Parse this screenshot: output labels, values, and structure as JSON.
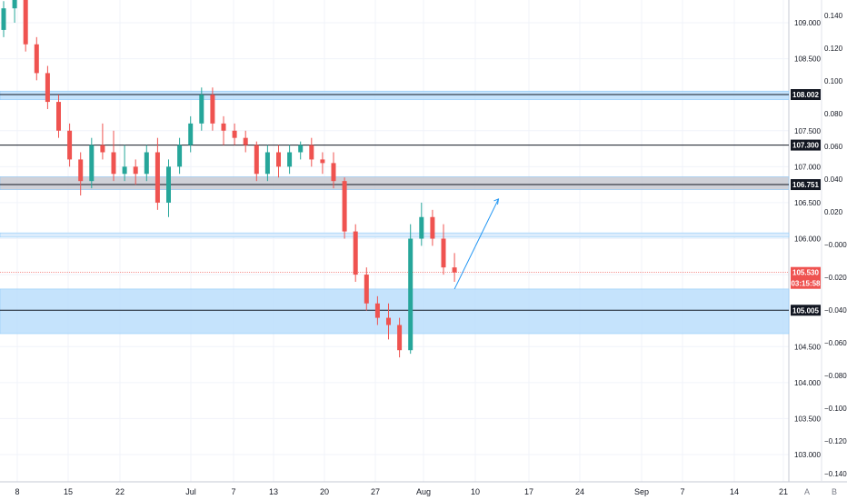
{
  "chart_data": {
    "type": "candlestick",
    "title": "",
    "xlabel": "",
    "ylabel": "",
    "ylim": [
      102.7,
      109.5
    ],
    "right_axis_ticks": [
      "109.000",
      "108.500",
      "108.000",
      "107.500",
      "107.000",
      "106.500",
      "106.000",
      "105.500",
      "105.000",
      "104.500",
      "104.000",
      "103.500",
      "103.000"
    ],
    "secondary_axis_ticks": [
      "0.140",
      "0.120",
      "0.100",
      "0.080",
      "0.060",
      "0.040",
      "0.020",
      "−0.000",
      "−0.020",
      "−0.040",
      "−0.060",
      "−0.080",
      "−0.100",
      "−0.120",
      "−0.140"
    ],
    "x_ticks": [
      "8",
      "15",
      "22",
      "Jul",
      "7",
      "13",
      "20",
      "27",
      "Aug",
      "10",
      "17",
      "24",
      "Sep",
      "7",
      "14",
      "21"
    ],
    "horizontal_levels": [
      {
        "value": 108.002,
        "label": "108.002",
        "color": "#131722"
      },
      {
        "value": 107.3,
        "label": "107.300",
        "color": "#131722"
      },
      {
        "value": 106.751,
        "label": "106.751",
        "color": "#131722"
      },
      {
        "value": 105.005,
        "label": "105.005",
        "color": "#131722"
      }
    ],
    "zones": [
      {
        "from": 107.93,
        "to": 108.05,
        "color": "#bbdefb"
      },
      {
        "from": 106.68,
        "to": 106.86,
        "color": "#c7c9d1"
      },
      {
        "from": 106.02,
        "to": 106.08,
        "color": "#d6e9fb"
      },
      {
        "from": 104.68,
        "to": 105.3,
        "color": "#bbdefb"
      }
    ],
    "last_price": {
      "value": 105.53,
      "label": "105.530",
      "countdown": "03:15:58",
      "color": "#ef5350"
    },
    "arrow": {
      "from": [
        41,
        105.3
      ],
      "to": [
        45,
        106.55
      ]
    },
    "corner_labels": [
      "A",
      "B"
    ],
    "up_color": "#26a69a",
    "down_color": "#ef5350",
    "candles": [
      [
        0,
        108.9,
        109.3,
        108.8,
        109.2
      ],
      [
        1,
        109.2,
        109.5,
        109.0,
        109.4
      ],
      [
        2,
        109.4,
        109.45,
        108.6,
        108.7
      ],
      [
        3,
        108.7,
        108.8,
        108.2,
        108.3
      ],
      [
        4,
        108.3,
        108.4,
        107.8,
        107.9
      ],
      [
        5,
        107.9,
        108.0,
        107.4,
        107.5
      ],
      [
        6,
        107.5,
        107.6,
        107.0,
        107.1
      ],
      [
        7,
        107.1,
        107.2,
        106.6,
        106.8
      ],
      [
        8,
        106.8,
        107.4,
        106.7,
        107.3
      ],
      [
        9,
        107.3,
        107.6,
        107.1,
        107.2
      ],
      [
        10,
        107.2,
        107.5,
        106.8,
        106.9
      ],
      [
        11,
        106.9,
        107.3,
        106.8,
        107.0
      ],
      [
        12,
        107.0,
        107.1,
        106.75,
        106.9
      ],
      [
        13,
        106.9,
        107.3,
        106.8,
        107.2
      ],
      [
        14,
        107.2,
        107.4,
        106.4,
        106.5
      ],
      [
        15,
        106.5,
        107.1,
        106.3,
        107.0
      ],
      [
        16,
        107.0,
        107.4,
        106.9,
        107.3
      ],
      [
        17,
        107.3,
        107.7,
        107.2,
        107.6
      ],
      [
        18,
        107.6,
        108.1,
        107.5,
        108.0
      ],
      [
        19,
        108.0,
        108.1,
        107.5,
        107.6
      ],
      [
        20,
        107.6,
        107.7,
        107.3,
        107.5
      ],
      [
        21,
        107.5,
        107.6,
        107.3,
        107.4
      ],
      [
        22,
        107.4,
        107.5,
        107.2,
        107.3
      ],
      [
        23,
        107.3,
        107.35,
        106.8,
        106.9
      ],
      [
        24,
        106.9,
        107.3,
        106.8,
        107.2
      ],
      [
        25,
        107.2,
        107.3,
        106.85,
        107.0
      ],
      [
        26,
        107.0,
        107.3,
        106.9,
        107.2
      ],
      [
        27,
        107.2,
        107.35,
        107.1,
        107.3
      ],
      [
        28,
        107.3,
        107.4,
        107.0,
        107.1
      ],
      [
        29,
        107.1,
        107.2,
        106.9,
        107.05
      ],
      [
        30,
        107.05,
        107.2,
        106.7,
        106.8
      ],
      [
        31,
        106.8,
        106.85,
        106.0,
        106.1
      ],
      [
        32,
        106.1,
        106.2,
        105.4,
        105.5
      ],
      [
        33,
        105.5,
        105.6,
        105.0,
        105.1
      ],
      [
        34,
        105.1,
        105.2,
        104.8,
        104.9
      ],
      [
        35,
        104.9,
        105.1,
        104.6,
        104.8
      ],
      [
        36,
        104.8,
        104.9,
        104.35,
        104.45
      ],
      [
        37,
        104.45,
        106.2,
        104.4,
        106.0
      ],
      [
        38,
        106.0,
        106.5,
        105.9,
        106.3
      ],
      [
        39,
        106.3,
        106.4,
        105.9,
        106.0
      ],
      [
        40,
        106.0,
        106.2,
        105.5,
        105.6
      ],
      [
        41,
        105.6,
        105.8,
        105.4,
        105.53
      ]
    ]
  }
}
